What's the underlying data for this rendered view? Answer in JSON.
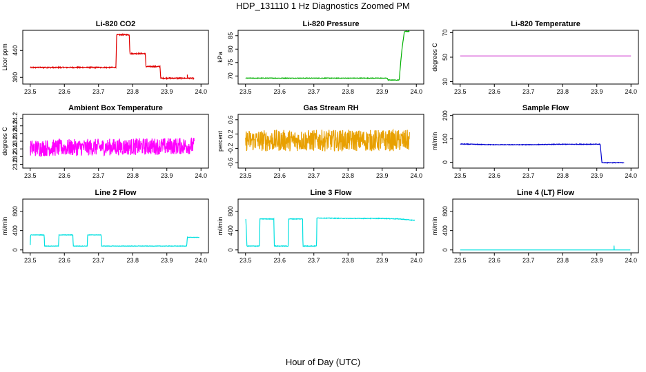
{
  "page_title": "HDP_131110  1 Hz Diagnostics Zoomed PM",
  "x_axis_label": "Hour of Day (UTC)",
  "chart_data": [
    {
      "type": "line",
      "title": "Li-820 CO2",
      "ylabel": "Licor ppm",
      "xlim": [
        23.5,
        24.0
      ],
      "ylim": [
        365,
        485
      ],
      "xticks": [
        23.5,
        23.6,
        23.7,
        23.8,
        23.9,
        24.0
      ],
      "xtick_labels": [
        "23.5",
        "23.6",
        "23.7",
        "23.8",
        "23.9",
        "24.0"
      ],
      "yticks": [
        380,
        440
      ],
      "ytick_labels": [
        "380",
        "440"
      ],
      "color": "#e00000",
      "noise": 1.2,
      "series": [
        {
          "x": [
            23.5,
            23.751,
            23.753,
            23.79,
            23.792,
            23.837,
            23.839,
            23.88,
            23.882,
            23.98
          ],
          "y": [
            402,
            402,
            475,
            475,
            433,
            433,
            404,
            404,
            378,
            378
          ]
        }
      ],
      "annotations": [
        {
          "x": 23.96,
          "y": 386
        }
      ]
    },
    {
      "type": "line",
      "title": "Li-820 Pressure",
      "ylabel": "kPa",
      "xlim": [
        23.5,
        24.0
      ],
      "ylim": [
        67,
        87
      ],
      "xticks": [
        23.5,
        23.6,
        23.7,
        23.8,
        23.9,
        24.0
      ],
      "xtick_labels": [
        "23.5",
        "23.6",
        "23.7",
        "23.8",
        "23.9",
        "24.0"
      ],
      "yticks": [
        70,
        75,
        80,
        85
      ],
      "ytick_labels": [
        "70",
        "75",
        "80",
        "85"
      ],
      "color": "#00b000",
      "noise": 0.1,
      "series": [
        {
          "x": [
            23.5,
            23.915,
            23.917,
            23.95,
            23.952,
            23.958,
            23.965,
            23.97,
            23.98
          ],
          "y": [
            69.2,
            69.2,
            68.5,
            68.5,
            72,
            80,
            86.6,
            86.6,
            86.6
          ]
        }
      ]
    },
    {
      "type": "line",
      "title": "Li-820 Temperature",
      "ylabel": "degrees C",
      "xlim": [
        23.5,
        24.0
      ],
      "ylim": [
        28,
        72
      ],
      "xticks": [
        23.5,
        23.6,
        23.7,
        23.8,
        23.9,
        24.0
      ],
      "xtick_labels": [
        "23.5",
        "23.6",
        "23.7",
        "23.8",
        "23.9",
        "24.0"
      ],
      "yticks": [
        30,
        50,
        70
      ],
      "ytick_labels": [
        "30",
        "50",
        "70"
      ],
      "color": "#d040d0",
      "noise": 0,
      "series": [
        {
          "x": [
            23.5,
            24.0
          ],
          "y": [
            51,
            51
          ]
        }
      ]
    },
    {
      "type": "line",
      "title": "Ambient Box Temperature",
      "ylabel": "degrees C",
      "xlim": [
        23.5,
        24.0
      ],
      "ylim": [
        22.9,
        24.3
      ],
      "xticks": [
        23.5,
        23.6,
        23.7,
        23.8,
        23.9,
        24.0
      ],
      "xtick_labels": [
        "23.5",
        "23.6",
        "23.7",
        "23.8",
        "23.9",
        "24.0"
      ],
      "yticks": [
        23.0,
        23.2,
        23.4,
        23.6,
        23.8,
        24.0,
        24.2
      ],
      "ytick_labels": [
        "23.0",
        "23.2",
        "23.4",
        "23.6",
        "23.8",
        "24.0",
        "24.2"
      ],
      "color": "#ff00ff",
      "noise": 0.22,
      "series": [
        {
          "x": [
            23.5,
            23.98
          ],
          "y": [
            23.42,
            23.48
          ]
        }
      ]
    },
    {
      "type": "line",
      "title": "Gas Stream RH",
      "ylabel": "percent",
      "xlim": [
        23.5,
        24.0
      ],
      "ylim": [
        -0.75,
        0.75
      ],
      "xticks": [
        23.5,
        23.6,
        23.7,
        23.8,
        23.9,
        24.0
      ],
      "xtick_labels": [
        "23.5",
        "23.6",
        "23.7",
        "23.8",
        "23.9",
        "24.0"
      ],
      "yticks": [
        -0.6,
        -0.2,
        0.2,
        0.6
      ],
      "ytick_labels": [
        "-0.6",
        "-0.2",
        "0.2",
        "0.6"
      ],
      "color": "#e8a000",
      "noise": 0.3,
      "series": [
        {
          "x": [
            23.5,
            23.98
          ],
          "y": [
            0.02,
            0.02
          ]
        }
      ]
    },
    {
      "type": "line",
      "title": "Sample Flow",
      "ylabel": "ml/min",
      "xlim": [
        23.5,
        24.0
      ],
      "ylim": [
        -25,
        205
      ],
      "xticks": [
        23.5,
        23.6,
        23.7,
        23.8,
        23.9,
        24.0
      ],
      "xtick_labels": [
        "23.5",
        "23.6",
        "23.7",
        "23.8",
        "23.9",
        "24.0"
      ],
      "yticks": [
        0,
        100,
        200
      ],
      "ytick_labels": [
        "0",
        "100",
        "200"
      ],
      "color": "#0000d0",
      "noise": 1.2,
      "series": [
        {
          "x": [
            23.5,
            23.6,
            23.7,
            23.8,
            23.91,
            23.915,
            23.92,
            23.98
          ],
          "y": [
            78,
            75,
            75,
            77,
            77,
            -2,
            -2,
            -2
          ]
        }
      ]
    },
    {
      "type": "line",
      "title": "Line 2 Flow",
      "ylabel": "ml/min",
      "xlim": [
        23.5,
        24.0
      ],
      "ylim": [
        -60,
        1050
      ],
      "xticks": [
        23.5,
        23.6,
        23.7,
        23.8,
        23.9,
        24.0
      ],
      "xtick_labels": [
        "23.5",
        "23.6",
        "23.7",
        "23.8",
        "23.9",
        "24.0"
      ],
      "yticks": [
        0,
        400,
        800
      ],
      "ytick_labels": [
        "0",
        "400",
        "800"
      ],
      "color": "#00e0e0",
      "noise": 4,
      "series": [
        {
          "x": [
            23.5,
            23.501,
            23.541,
            23.542,
            23.583,
            23.584,
            23.625,
            23.626,
            23.667,
            23.668,
            23.708,
            23.709,
            23.958,
            23.96,
            23.995
          ],
          "y": [
            100,
            310,
            310,
            80,
            80,
            310,
            310,
            80,
            80,
            310,
            310,
            80,
            80,
            260,
            260
          ]
        }
      ]
    },
    {
      "type": "line",
      "title": "Line 3 Flow",
      "ylabel": "ml/min",
      "xlim": [
        23.5,
        24.0
      ],
      "ylim": [
        -60,
        1050
      ],
      "xticks": [
        23.5,
        23.6,
        23.7,
        23.8,
        23.9,
        24.0
      ],
      "xtick_labels": [
        "23.5",
        "23.6",
        "23.7",
        "23.8",
        "23.9",
        "24.0"
      ],
      "yticks": [
        0,
        400,
        800
      ],
      "ytick_labels": [
        "0",
        "400",
        "800"
      ],
      "color": "#00e0e0",
      "noise": 6,
      "series": [
        {
          "x": [
            23.5,
            23.501,
            23.504,
            23.541,
            23.542,
            23.583,
            23.584,
            23.625,
            23.626,
            23.667,
            23.668,
            23.708,
            23.709,
            23.8,
            23.9,
            23.95,
            23.995
          ],
          "y": [
            630,
            630,
            80,
            80,
            640,
            640,
            80,
            80,
            640,
            640,
            80,
            80,
            660,
            650,
            650,
            640,
            610
          ]
        }
      ]
    },
    {
      "type": "line",
      "title": "Line 4 (LT) Flow",
      "ylabel": "ml/min",
      "xlim": [
        23.5,
        24.0
      ],
      "ylim": [
        -60,
        1050
      ],
      "xticks": [
        23.5,
        23.6,
        23.7,
        23.8,
        23.9,
        24.0
      ],
      "xtick_labels": [
        "23.5",
        "23.6",
        "23.7",
        "23.8",
        "23.9",
        "24.0"
      ],
      "yticks": [
        0,
        400,
        800
      ],
      "ytick_labels": [
        "0",
        "400",
        "800"
      ],
      "color": "#00e0e0",
      "noise": 0,
      "series": [
        {
          "x": [
            23.5,
            23.95,
            23.9505,
            23.951,
            23.9515,
            23.998
          ],
          "y": [
            0,
            0,
            90,
            10,
            0,
            0
          ]
        }
      ]
    }
  ]
}
